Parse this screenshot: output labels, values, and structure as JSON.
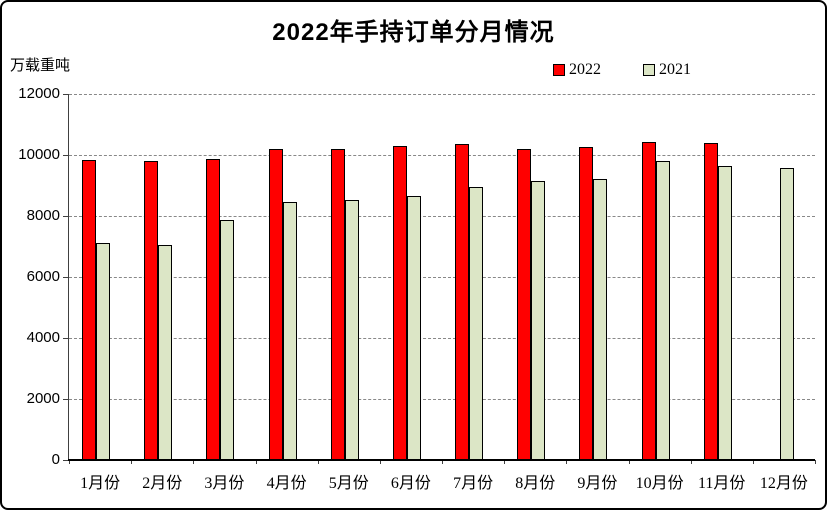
{
  "window": {
    "background": "#FFFFFF",
    "border_color": "#000000"
  },
  "chart_data": {
    "type": "bar",
    "title": "2022年手持订单分月情况",
    "ylabel": "万载重吨",
    "xlabel": "",
    "categories": [
      "1月份",
      "2月份",
      "3月份",
      "4月份",
      "5月份",
      "6月份",
      "7月份",
      "8月份",
      "9月份",
      "10月份",
      "11月份",
      "12月份"
    ],
    "series": [
      {
        "name": "2022",
        "color": "#FF0000",
        "values": [
          9850,
          9800,
          9880,
          10210,
          10190,
          10290,
          10360,
          10190,
          10260,
          10440,
          10380,
          null
        ]
      },
      {
        "name": "2021",
        "color": "#DCE6C6",
        "values": [
          7100,
          7060,
          7860,
          8450,
          8510,
          8660,
          8950,
          9150,
          9230,
          9800,
          9640,
          9580
        ]
      }
    ],
    "ylim": [
      0,
      12000
    ],
    "ytick_step": 2000,
    "yticks": [
      12000,
      10000,
      8000,
      6000,
      4000,
      2000,
      0
    ],
    "grid": "horizontal-dashed",
    "legend_position": "top-right",
    "gridline_color": "#888888",
    "axis_color": "#404040"
  }
}
